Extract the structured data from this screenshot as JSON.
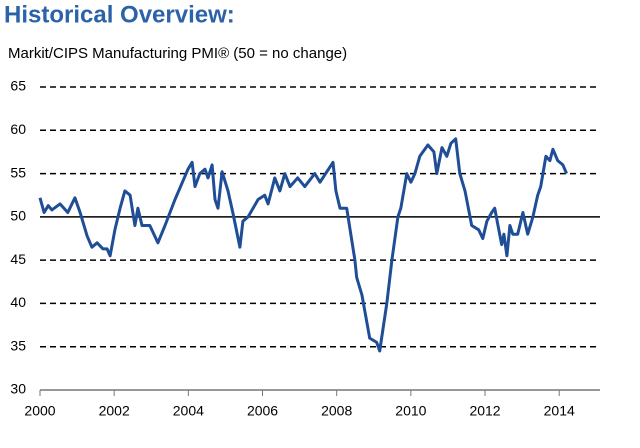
{
  "chart_data": {
    "type": "line",
    "title": "Historical Overview:",
    "subtitle": "Markit/CIPS Manufacturing PMI® (50 = no change)",
    "x": [
      2000,
      2000.11,
      2000.22,
      2000.32,
      2000.54,
      2000.75,
      2000.94,
      2001.08,
      2001.27,
      2001.4,
      2001.54,
      2001.7,
      2001.81,
      2001.89,
      2002.02,
      2002.16,
      2002.29,
      2002.43,
      2002.56,
      2002.64,
      2002.75,
      2002.96,
      2003.18,
      2003.37,
      2003.64,
      2003.99,
      2004.1,
      2004.18,
      2004.31,
      2004.45,
      2004.53,
      2004.64,
      2004.72,
      2004.8,
      2004.91,
      2005.07,
      2005.2,
      2005.39,
      2005.47,
      2005.61,
      2005.88,
      2006.06,
      2006.15,
      2006.33,
      2006.47,
      2006.6,
      2006.74,
      2006.95,
      2007.14,
      2007.41,
      2007.55,
      2007.9,
      2007.98,
      2008.09,
      2008.27,
      2008.49,
      2008.54,
      2008.68,
      2008.89,
      2009.08,
      2009.16,
      2009.35,
      2009.49,
      2009.65,
      2009.73,
      2009.89,
      2010.0,
      2010.11,
      2010.24,
      2010.46,
      2010.62,
      2010.7,
      2010.84,
      2010.97,
      2011.08,
      2011.21,
      2011.32,
      2011.46,
      2011.64,
      2011.83,
      2011.94,
      2012.05,
      2012.18,
      2012.26,
      2012.35,
      2012.45,
      2012.51,
      2012.59,
      2012.67,
      2012.75,
      2012.88,
      2013.02,
      2013.15,
      2013.29,
      2013.42,
      2013.5,
      2013.64,
      2013.75,
      2013.83,
      2013.96,
      2014.1,
      2014.2
    ],
    "series": [
      {
        "color": "#1f4e96",
        "values": [
          52.2,
          50.5,
          51.3,
          50.8,
          51.5,
          50.5,
          52.2,
          50.5,
          47.8,
          46.5,
          47,
          46.3,
          46.3,
          45.5,
          48.5,
          51,
          53,
          52.5,
          49,
          51,
          49,
          49,
          47,
          49,
          52,
          55.5,
          56.3,
          53.5,
          55,
          55.5,
          54.5,
          56,
          52,
          51,
          55.2,
          53,
          50.5,
          46.5,
          49.5,
          50,
          52,
          52.5,
          51.5,
          54.5,
          53,
          55,
          53.5,
          54.5,
          53.5,
          55,
          54,
          56.3,
          53,
          51,
          51,
          45,
          43,
          41,
          36,
          35.5,
          34.5,
          40,
          45,
          50,
          51,
          55,
          54,
          55,
          57,
          58.3,
          57.5,
          55,
          58,
          57,
          58.5,
          59,
          55,
          53,
          49,
          48.5,
          47.5,
          49.5,
          50.5,
          51,
          49,
          46.8,
          48,
          45.5,
          49,
          48,
          48,
          50.5,
          48,
          50,
          52.5,
          53.5,
          57,
          56.5,
          57.8,
          56.5,
          56,
          55
        ]
      }
    ],
    "xlim": [
      2000,
      2015.1
    ],
    "xticks": [
      2000,
      2002,
      2004,
      2006,
      2008,
      2010,
      2012,
      2014
    ],
    "ylim": [
      30,
      65
    ],
    "yticks": [
      30,
      35,
      40,
      45,
      50,
      55,
      60,
      65
    ],
    "grid": true,
    "ref_line": 50
  }
}
